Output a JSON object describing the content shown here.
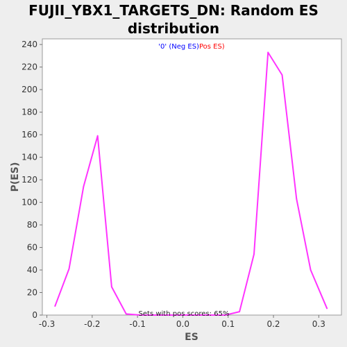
{
  "chart_data": {
    "type": "line",
    "title_line1": "FUJII_YBX1_TARGETS_DN: Random ES",
    "title_line2": "distribution",
    "xlabel": "ES",
    "ylabel": "P(ES)",
    "xlim": [
      -0.31,
      0.35
    ],
    "ylim": [
      0,
      245
    ],
    "x_ticks": [
      -0.3,
      -0.2,
      -0.1,
      0.0,
      0.1,
      0.2,
      0.3
    ],
    "x_tick_labels": [
      "-0.3",
      "-0.2",
      "-0.1",
      "0.0",
      "0.1",
      "0.2",
      "0.3"
    ],
    "y_ticks": [
      0,
      20,
      40,
      60,
      80,
      100,
      120,
      140,
      160,
      180,
      200,
      220,
      240
    ],
    "y_tick_labels": [
      "0",
      "20",
      "40",
      "60",
      "80",
      "100",
      "120",
      "140",
      "160",
      "180",
      "200",
      "220",
      "240"
    ],
    "grid": false,
    "legend": {
      "placement": "top-center",
      "neg_text": "'0' (Neg ES)",
      "pos_text": "Pos ES)",
      "neg_color": "#0000ff",
      "pos_color": "#ff0000"
    },
    "annotation": "Sets with pos scores: 65%",
    "series": [
      {
        "color": "#ff33ff",
        "x": [
          -0.282,
          -0.251,
          -0.219,
          -0.188,
          -0.157,
          -0.125,
          -0.094,
          -0.063,
          -0.031,
          0.0,
          0.031,
          0.063,
          0.094,
          0.125,
          0.157,
          0.188,
          0.219,
          0.251,
          0.282,
          0.318
        ],
        "y": [
          8,
          41,
          114,
          159,
          25,
          1,
          0,
          0,
          0,
          0,
          0,
          0,
          0,
          3,
          54,
          233,
          213,
          103,
          40,
          6
        ]
      }
    ]
  }
}
